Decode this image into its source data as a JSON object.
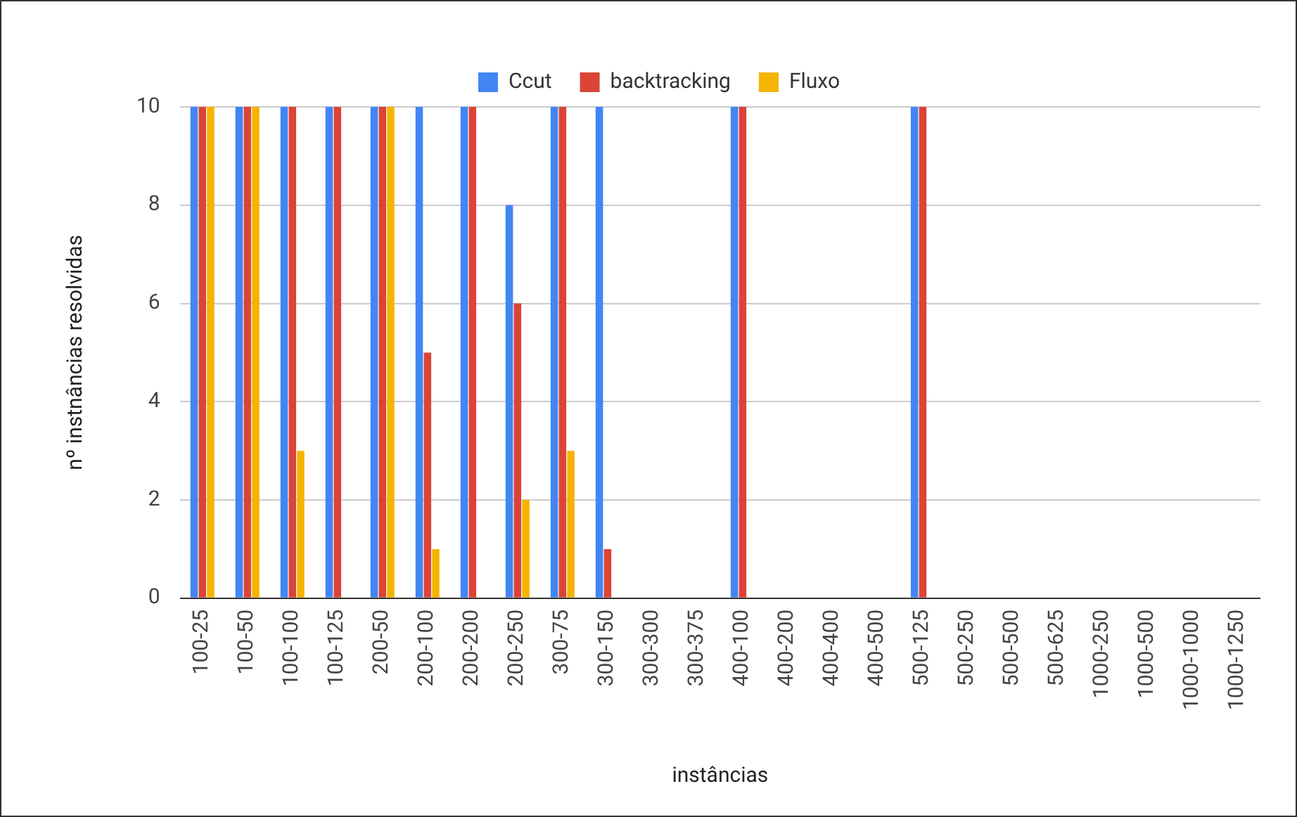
{
  "chart_data": {
    "type": "bar",
    "xlabel": "instâncias",
    "ylabel": "nº instnâncias resolvidas",
    "categories": [
      "100-25",
      "100-50",
      "100-100",
      "100-125",
      "200-50",
      "200-100",
      "200-200",
      "200-250",
      "300-75",
      "300-150",
      "300-300",
      "300-375",
      "400-100",
      "400-200",
      "400-400",
      "400-500",
      "500-125",
      "500-250",
      "500-500",
      "500-625",
      "1000-250",
      "1000-500",
      "1000-1000",
      "1000-1250"
    ],
    "series": [
      {
        "name": "Ccut",
        "color": "#4285f4",
        "values": [
          10,
          10,
          10,
          10,
          10,
          10,
          10,
          8,
          10,
          10,
          0,
          0,
          10,
          0,
          0,
          0,
          10,
          0,
          0,
          0,
          0,
          0,
          0,
          0
        ]
      },
      {
        "name": "backtracking",
        "color": "#db4437",
        "values": [
          10,
          10,
          10,
          10,
          10,
          5,
          10,
          6,
          10,
          1,
          0,
          0,
          10,
          0,
          0,
          0,
          10,
          0,
          0,
          0,
          0,
          0,
          0,
          0
        ]
      },
      {
        "name": "Fluxo",
        "color": "#f4b400",
        "values": [
          10,
          10,
          3,
          0,
          10,
          1,
          0,
          2,
          3,
          0,
          0,
          0,
          0,
          0,
          0,
          0,
          0,
          0,
          0,
          0,
          0,
          0,
          0,
          0
        ]
      }
    ],
    "ylim": [
      0,
      10
    ],
    "yticks": [
      0,
      2,
      4,
      6,
      8,
      10
    ],
    "grid": "y",
    "legend": "top"
  }
}
